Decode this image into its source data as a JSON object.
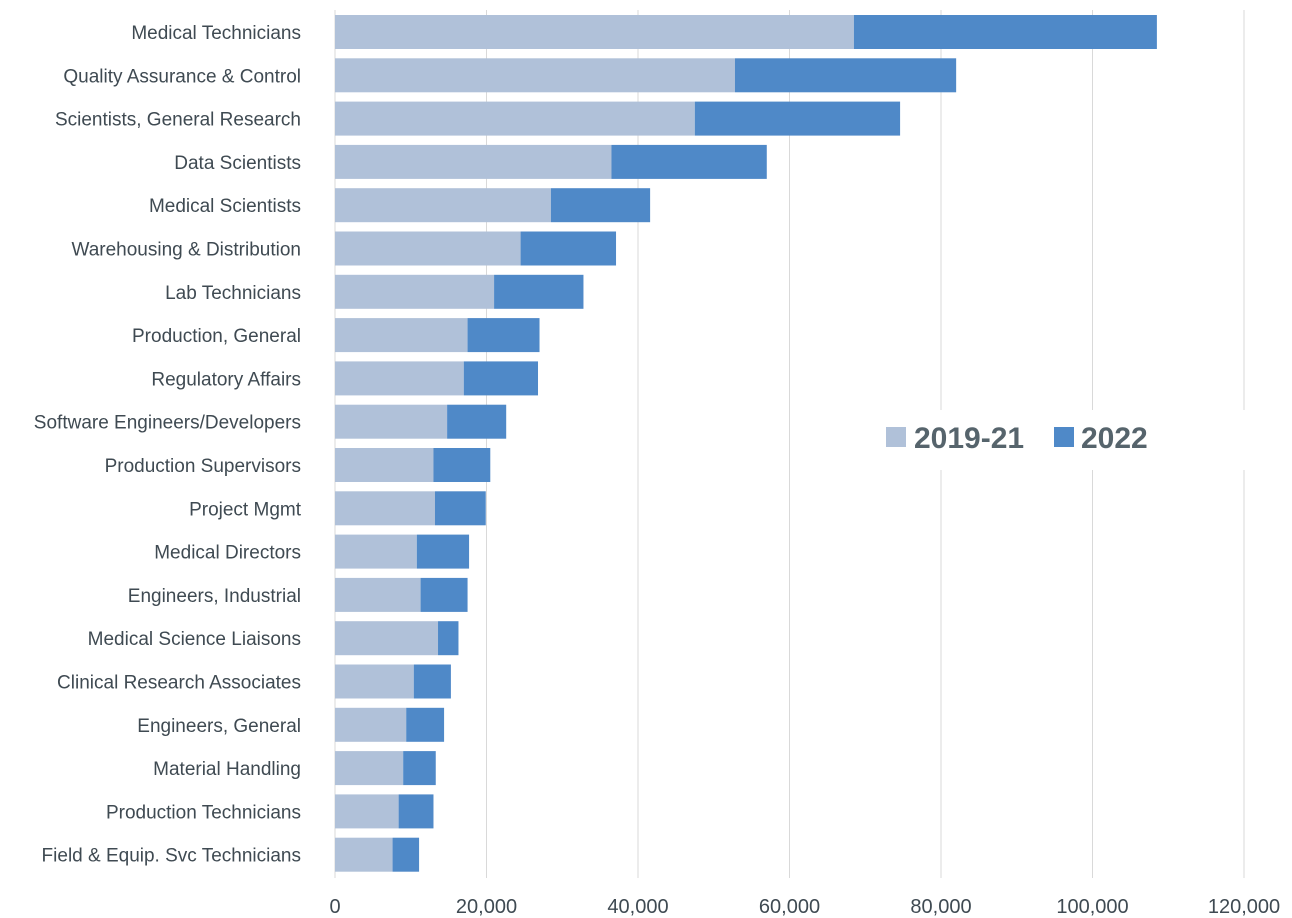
{
  "chart_data": {
    "type": "bar",
    "orientation": "horizontal",
    "stacked": true,
    "categories": [
      "Medical Technicians",
      "Quality Assurance & Control",
      "Scientists, General Research",
      "Data Scientists",
      "Medical Scientists",
      "Warehousing & Distribution",
      "Lab Technicians",
      "Production, General",
      "Regulatory Affairs",
      "Software Engineers/Developers",
      "Production Supervisors",
      "Project Mgmt",
      "Medical Directors",
      "Engineers, Industrial",
      "Medical Science Liaisons",
      "Clinical Research Associates",
      "Engineers, General",
      "Material Handling",
      "Production Technicians",
      "Field & Equip. Svc Technicians"
    ],
    "series": [
      {
        "name": "2019-21",
        "color": "#b0c1d9",
        "values": [
          68500,
          52800,
          47500,
          36500,
          28500,
          24500,
          21000,
          17500,
          17000,
          14800,
          13000,
          13200,
          10800,
          11300,
          13600,
          10400,
          9400,
          9000,
          8400,
          7600
        ]
      },
      {
        "name": "2022",
        "color": "#4f89c8",
        "values": [
          40000,
          29200,
          27100,
          20500,
          13100,
          12600,
          11800,
          9500,
          9800,
          7800,
          7500,
          6700,
          6900,
          6200,
          2700,
          4900,
          5000,
          4300,
          4600,
          3500
        ]
      }
    ],
    "xlim": [
      0,
      120000
    ],
    "xticks": [
      0,
      20000,
      40000,
      60000,
      80000,
      100000,
      120000
    ],
    "xtick_labels": [
      "0",
      "20,000",
      "40,000",
      "60,000",
      "80,000",
      "100,000",
      "120,000"
    ],
    "grid": "vertical",
    "legend_position": "right-middle",
    "title": "",
    "xlabel": "",
    "ylabel": ""
  }
}
